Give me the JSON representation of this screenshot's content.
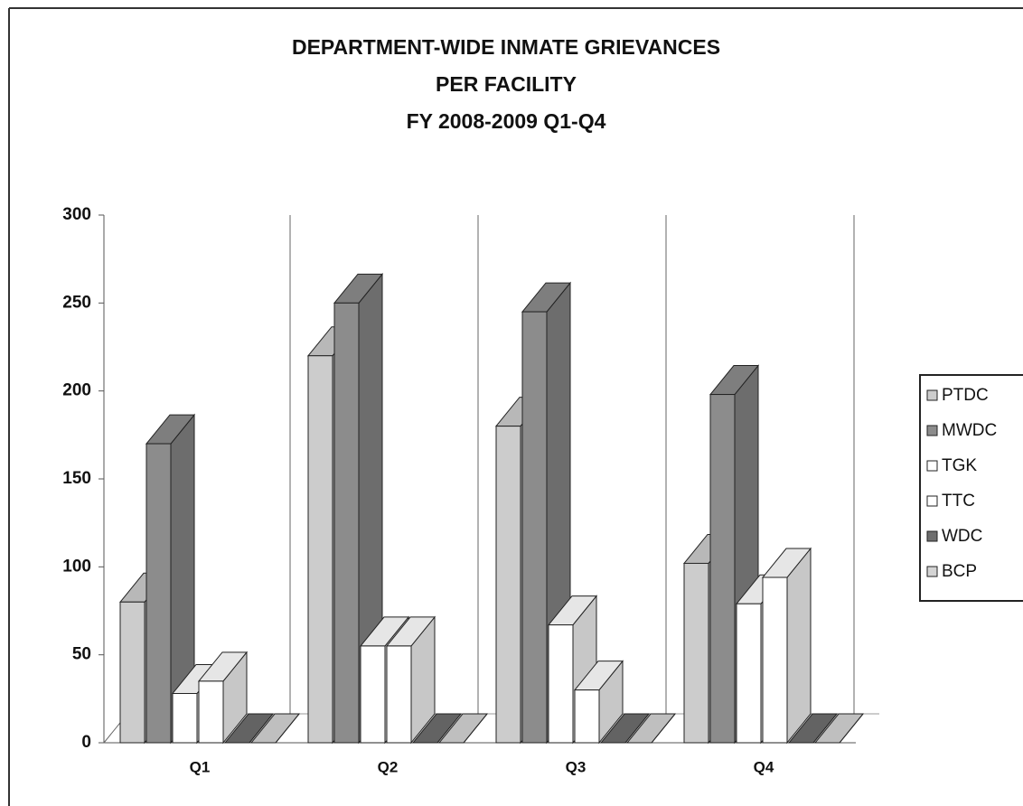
{
  "chart_data": {
    "type": "bar3d",
    "title": [
      "DEPARTMENT-WIDE INMATE GRIEVANCES",
      "PER FACILITY",
      "FY 2008-2009 Q1-Q4"
    ],
    "categories": [
      "Q1",
      "Q2",
      "Q3",
      "Q4"
    ],
    "series": [
      {
        "name": "PTDC",
        "color": "#cccccc",
        "values": [
          80,
          220,
          180,
          102
        ]
      },
      {
        "name": "MWDC",
        "color": "#8c8c8c",
        "values": [
          170,
          250,
          245,
          198
        ]
      },
      {
        "name": "TGK",
        "color": "#ffffff",
        "values": [
          28,
          55,
          67,
          79
        ]
      },
      {
        "name": "TTC",
        "color": "#ffffff",
        "values": [
          35,
          55,
          30,
          94
        ]
      },
      {
        "name": "WDC",
        "color": "#6e6e6e",
        "values": [
          0,
          0,
          0,
          0
        ]
      },
      {
        "name": "BCP",
        "color": "#d4d4d4",
        "values": [
          0,
          0,
          0,
          0
        ]
      }
    ],
    "ylim": [
      0,
      300
    ],
    "yticks": [
      0,
      50,
      100,
      150,
      200,
      250,
      300
    ],
    "legend": "right"
  }
}
